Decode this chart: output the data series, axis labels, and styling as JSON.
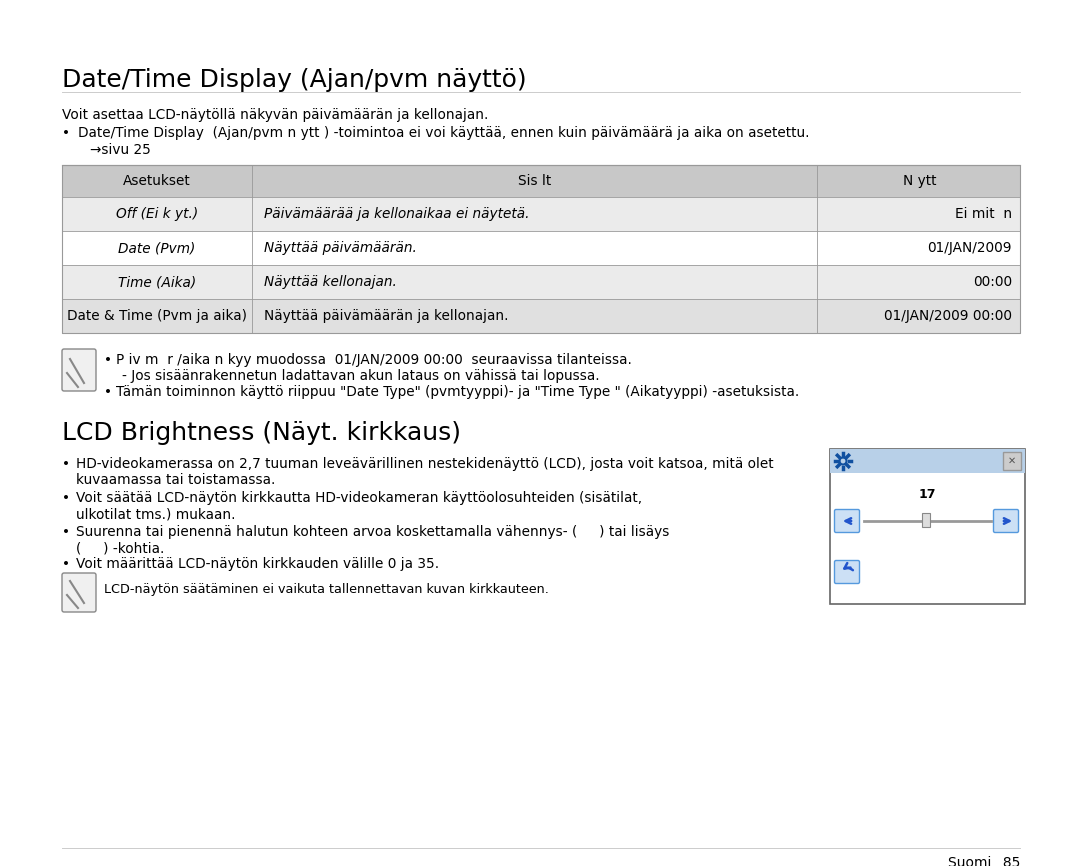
{
  "bg_color": "#ffffff",
  "title1": "Date/Time Display (Ajan/pvm näyttö)",
  "para1": "Voit asettaa LCD-näytöllä näkyvän päivämäärän ja kellonajan.",
  "bullet1": "Date/Time Display  (Ajan/pvm n ytt ) -toimintoa ei voi käyttää, ennen kuin päivämäärä ja aika on asetettu.",
  "arrow_text": "→sivu 25",
  "table_headers": [
    "Asetukset",
    "Sis lt",
    "N ytt"
  ],
  "table_rows": [
    [
      "Off (Ei k yt.)",
      "Päivämäärää ja kellonaikaa ei näytetä.",
      "Ei mit  n"
    ],
    [
      "Date (Pvm)",
      "Näyttää päivämäärän.",
      "01/JAN/2009"
    ],
    [
      "Time (Aika)",
      "Näyttää kellonajan.",
      "00:00"
    ],
    [
      "Date & Time (Pvm ja aika)",
      "Näyttää päivämäärän ja kellonajan.",
      "01/JAN/2009 00:00"
    ]
  ],
  "note1_line1": "P iv m  r /aika n kyy muodossa  01/JAN/2009 00:00  seuraavissa tilanteissa.",
  "note1_line2": "- Jos sisäänrakennetun ladattavan akun lataus on vähissä tai lopussa.",
  "note1_line3": "Tämän toiminnon käyttö riippuu \"Date Type\" (pvmtyyppi)- ja \"Time Type \" (Aikatyyppi) -asetuksista.",
  "title2": "LCD Brightness (Näyt. kirkkaus)",
  "lcd_b1a": "HD-videokamerassa on 2,7 tuuman leveävärillinen nestekidenäyttö (LCD), josta voit katsoa, mitä olet",
  "lcd_b1b": "kuvaamassa tai toistamassa.",
  "lcd_b2a": "Voit säätää LCD-näytön kirkkautta HD-videokameran käyttöolosuhteiden (sisätilat,",
  "lcd_b2b": "ulkotilat tms.) mukaan.",
  "lcd_b3a": "Suurenna tai pienennä halutun kohteen arvoa koskettamalla vähennys- (     ) tai lisäys",
  "lcd_b3b": "(     ) -kohtia.",
  "lcd_b4": "Voit määrittää LCD-näytön kirkkauden välille 0 ja 35.",
  "note2_text": "LCD-näytön säätäminen ei vaikuta tallennettavan kuvan kirkkauteen.",
  "footer": "Suomi _85",
  "header_bg": "#c8c8c8",
  "row_alt_bg": "#ebebeb",
  "row_bg": "#ffffff",
  "last_row_bg": "#e0e0e0",
  "table_border": "#999999",
  "lcd_box_title_bg": "#b8d0e8",
  "lcd_box_border": "#666666"
}
